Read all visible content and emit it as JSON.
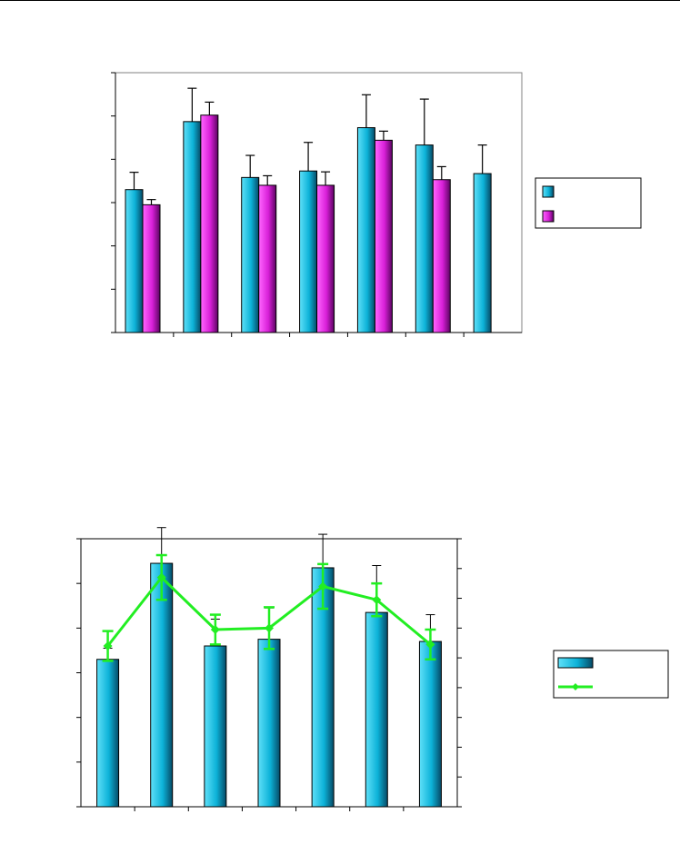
{
  "chart_data": [
    {
      "type": "bar",
      "categories": [
        "",
        "",
        "",
        "",
        "",
        "",
        ""
      ],
      "ylim": [
        0,
        6
      ],
      "series": [
        {
          "color": "#0fb4d8",
          "values": [
            3.3,
            4.87,
            3.58,
            3.73,
            4.73,
            4.33,
            3.67
          ],
          "errors": [
            0.4,
            0.77,
            0.51,
            0.66,
            0.76,
            1.06,
            0.66
          ]
        },
        {
          "color": "#d81fd8",
          "values": [
            2.95,
            5.02,
            3.4,
            3.4,
            4.44,
            3.53,
            null
          ],
          "errors": [
            0.12,
            0.3,
            0.22,
            0.31,
            0.21,
            0.3,
            null
          ]
        }
      ],
      "legend": {
        "position": "right",
        "entries": [
          "",
          ""
        ]
      }
    },
    {
      "type": "bar",
      "categories": [
        "",
        "",
        "",
        "",
        "",
        "",
        ""
      ],
      "ylim": [
        0,
        6
      ],
      "y2lim": [
        0,
        9
      ],
      "series": [
        {
          "color": "#0fb4d8",
          "values": [
            3.3,
            5.45,
            3.6,
            3.75,
            5.35,
            4.35,
            3.7
          ],
          "errors": [
            0.25,
            0.8,
            0.6,
            0.7,
            0.75,
            1.05,
            0.6
          ]
        },
        {
          "color": "#22ee22",
          "type": "line",
          "axis": "secondary",
          "values": [
            5.4,
            7.7,
            5.95,
            6.0,
            7.4,
            6.95,
            5.45
          ],
          "errors": [
            0.5,
            0.75,
            0.5,
            0.7,
            0.75,
            0.55,
            0.5
          ]
        }
      ],
      "legend": {
        "position": "right",
        "entries": [
          "",
          ""
        ]
      }
    }
  ]
}
